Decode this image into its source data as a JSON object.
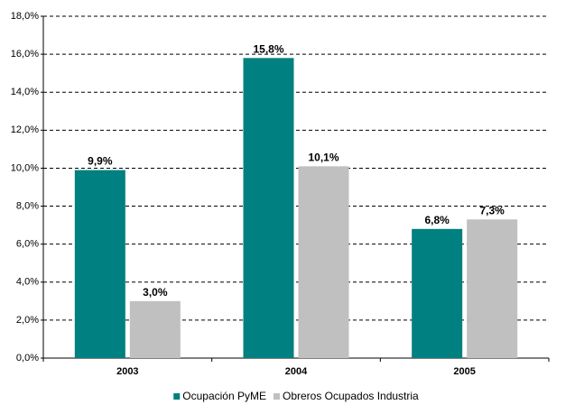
{
  "chart_data": {
    "type": "bar",
    "categories": [
      "2003",
      "2004",
      "2005"
    ],
    "series": [
      {
        "name": "Ocupación PyME",
        "color": "#008080",
        "values": [
          9.9,
          15.8,
          6.8
        ],
        "value_labels": [
          "9,9%",
          "15,8%",
          "6,8%"
        ]
      },
      {
        "name": "Obreros Ocupados Industria",
        "color": "#c0c0c0",
        "values": [
          3.0,
          10.1,
          7.3
        ],
        "value_labels": [
          "3,0%",
          "10,1%",
          "7,3%"
        ]
      }
    ],
    "ylim": [
      0,
      18
    ],
    "yticks": [
      {
        "value": 0,
        "label": "0,0%"
      },
      {
        "value": 2,
        "label": "2,0%"
      },
      {
        "value": 4,
        "label": "4,0%"
      },
      {
        "value": 6,
        "label": "6,0%"
      },
      {
        "value": 8,
        "label": "8,0%"
      },
      {
        "value": 10,
        "label": "10,0%"
      },
      {
        "value": 12,
        "label": "12,0%"
      },
      {
        "value": 14,
        "label": "14,0%"
      },
      {
        "value": 16,
        "label": "16,0%"
      },
      {
        "value": 18,
        "label": "18,0%"
      }
    ],
    "grid": true
  }
}
